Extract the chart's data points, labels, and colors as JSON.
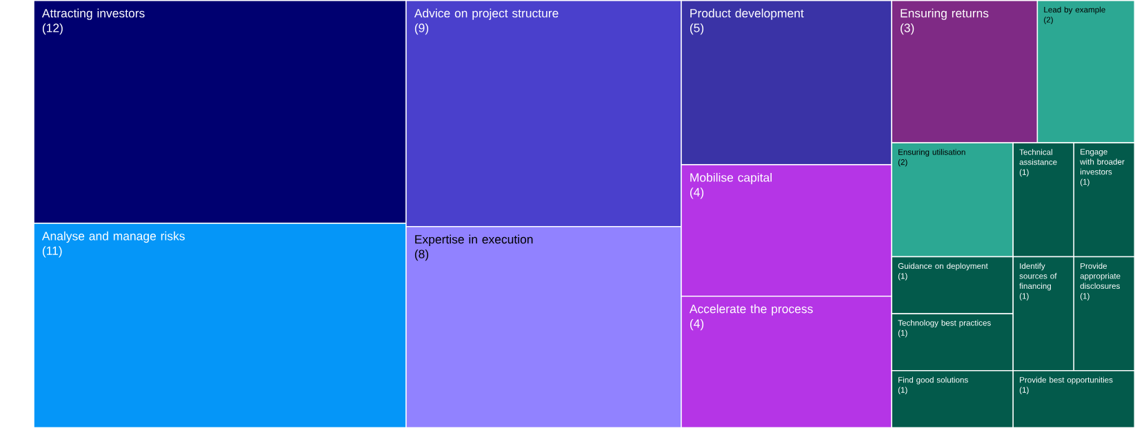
{
  "chart_data": {
    "type": "other",
    "categories": [
      "Attracting investors",
      "Analyse and manage risks",
      "Advice on project structure",
      "Expertise in execution",
      "Product development",
      "Mobilise capital",
      "Accelerate the process",
      "Ensuring returns",
      "Lead by example",
      "Ensuring utilisation",
      "Technical assistance",
      "Engage with broader investors",
      "Guidance on deployment",
      "Technology best practices",
      "Find good solutions",
      "Identify sources of financing",
      "Provide appropriate disclosures",
      "Provide best opportunities"
    ],
    "values": [
      12,
      11,
      9,
      8,
      5,
      4,
      4,
      3,
      2,
      2,
      1,
      1,
      1,
      1,
      1,
      1,
      1,
      1
    ],
    "value_labels": [
      "(12)",
      "(11)",
      "(9)",
      "(8)",
      "(5)",
      "(4)",
      "(4)",
      "(3)",
      "(2)",
      "(2)",
      "(1)",
      "(1)",
      "(1)",
      "(1)",
      "(1)",
      "(1)",
      "(1)",
      "(1)"
    ],
    "colors": [
      "#000070",
      "#0596f8",
      "#4a40cc",
      "#9182ff",
      "#3a33a6",
      "#b535e6",
      "#b535e6",
      "#7f2a85",
      "#2ca893",
      "#2ca893",
      "#035a4b",
      "#035a4b",
      "#035a4b",
      "#035a4b",
      "#035a4b",
      "#035a4b",
      "#035a4b",
      "#035a4b"
    ]
  }
}
